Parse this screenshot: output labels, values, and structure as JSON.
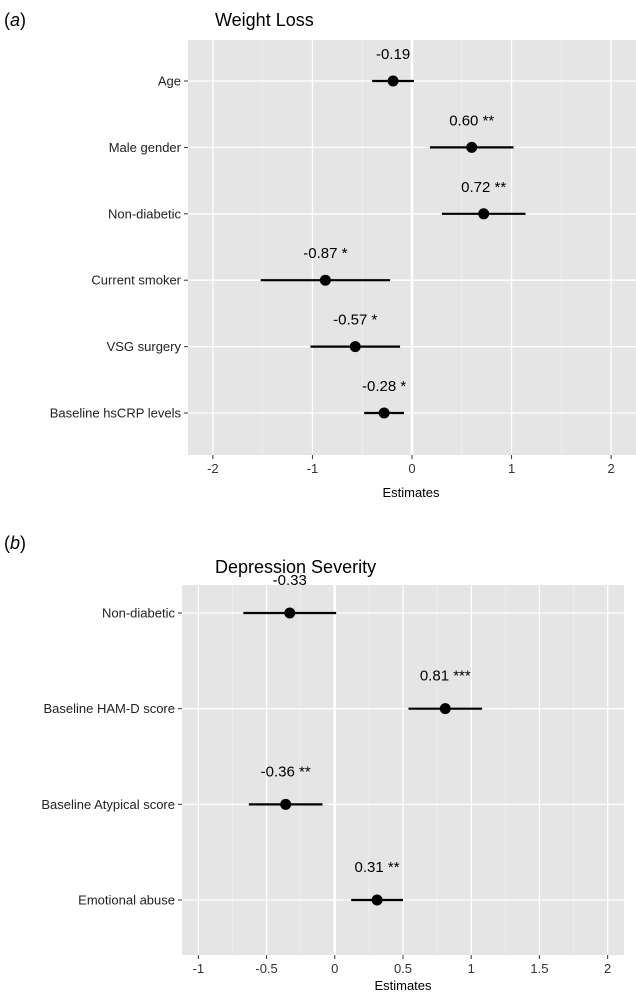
{
  "chart_data": [
    {
      "type": "forest",
      "tag": "a",
      "title": "Weight Loss",
      "xlabel": "Estimates",
      "xlim": [
        -2.25,
        2.25
      ],
      "xticks": [
        -2,
        -1,
        0,
        1,
        2
      ],
      "xtick_labels": [
        "-2",
        "-1",
        "0",
        "1",
        "2"
      ],
      "rows": [
        {
          "label": "Age",
          "estimate": -0.19,
          "ci": [
            -0.4,
            0.02
          ],
          "annotation": "-0.19"
        },
        {
          "label": "Male gender",
          "estimate": 0.6,
          "ci": [
            0.18,
            1.02
          ],
          "annotation": "0.60 **"
        },
        {
          "label": "Non-diabetic",
          "estimate": 0.72,
          "ci": [
            0.3,
            1.14
          ],
          "annotation": "0.72 **"
        },
        {
          "label": "Current smoker",
          "estimate": -0.87,
          "ci": [
            -1.52,
            -0.22
          ],
          "annotation": "-0.87 *"
        },
        {
          "label": "VSG surgery",
          "estimate": -0.57,
          "ci": [
            -1.02,
            -0.12
          ],
          "annotation": "-0.57 *"
        },
        {
          "label": "Baseline hsCRP levels",
          "estimate": -0.28,
          "ci": [
            -0.48,
            -0.08
          ],
          "annotation": "-0.28 *"
        }
      ]
    },
    {
      "type": "forest",
      "tag": "b",
      "title": "Depression Severity",
      "xlabel": "Estimates",
      "xlim": [
        -1.12,
        2.12
      ],
      "xticks": [
        -1,
        -0.5,
        0,
        0.5,
        1,
        1.5,
        2
      ],
      "xtick_labels": [
        "-1",
        "-0.5",
        "0",
        "0.5",
        "1",
        "1.5",
        "2"
      ],
      "rows": [
        {
          "label": "Non-diabetic",
          "estimate": -0.33,
          "ci": [
            -0.67,
            0.01
          ],
          "annotation": "-0.33"
        },
        {
          "label": "Baseline HAM-D score",
          "estimate": 0.81,
          "ci": [
            0.54,
            1.08
          ],
          "annotation": "0.81 ***"
        },
        {
          "label": "Baseline Atypical score",
          "estimate": -0.36,
          "ci": [
            -0.63,
            -0.09
          ],
          "annotation": "-0.36 **"
        },
        {
          "label": "Emotional abuse",
          "estimate": 0.31,
          "ci": [
            0.12,
            0.5
          ],
          "annotation": "0.31 **"
        }
      ]
    }
  ]
}
